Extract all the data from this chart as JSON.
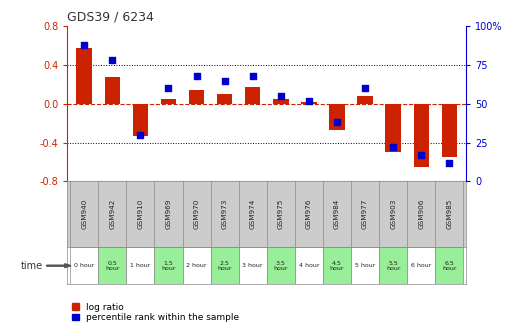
{
  "title": "GDS39 / 6234",
  "samples": [
    "GSM940",
    "GSM942",
    "GSM910",
    "GSM969",
    "GSM970",
    "GSM973",
    "GSM974",
    "GSM975",
    "GSM976",
    "GSM984",
    "GSM977",
    "GSM903",
    "GSM906",
    "GSM985"
  ],
  "time_labels": [
    "0 hour",
    "0.5\nhour",
    "1 hour",
    "1.5\nhour",
    "2 hour",
    "2.5\nhour",
    "3 hour",
    "3.5\nhour",
    "4 hour",
    "4.5\nhour",
    "5 hour",
    "5.5\nhour",
    "6 hour",
    "6.5\nhour"
  ],
  "log_ratio": [
    0.58,
    0.28,
    -0.33,
    0.05,
    0.14,
    0.1,
    0.17,
    0.05,
    0.02,
    -0.27,
    0.08,
    -0.5,
    -0.65,
    -0.55
  ],
  "percentile": [
    88,
    78,
    30,
    60,
    68,
    65,
    68,
    55,
    52,
    38,
    60,
    22,
    17,
    12
  ],
  "ylim_left": [
    -0.8,
    0.8
  ],
  "ylim_right": [
    0,
    100
  ],
  "yticks_left": [
    -0.8,
    -0.4,
    0.0,
    0.4,
    0.8
  ],
  "yticks_right": [
    0,
    25,
    50,
    75,
    100
  ],
  "bar_color": "#cc2200",
  "dot_color": "#0000cc",
  "grid_color": "#000000",
  "zero_line_color": "#cc2200",
  "bg_color": "#ffffff",
  "plot_bg": "#ffffff",
  "time_bg_green": "#99ee99",
  "time_bg_white": "#ffffff",
  "sample_bg": "#cccccc",
  "title_color": "#333333",
  "left_axis_color": "#cc2200",
  "right_axis_color": "#0000cc",
  "bar_width": 0.55,
  "time_green_indices": [
    1,
    3,
    5,
    7,
    9,
    11,
    13
  ],
  "legend_items": [
    "log ratio",
    "percentile rank within the sample"
  ]
}
